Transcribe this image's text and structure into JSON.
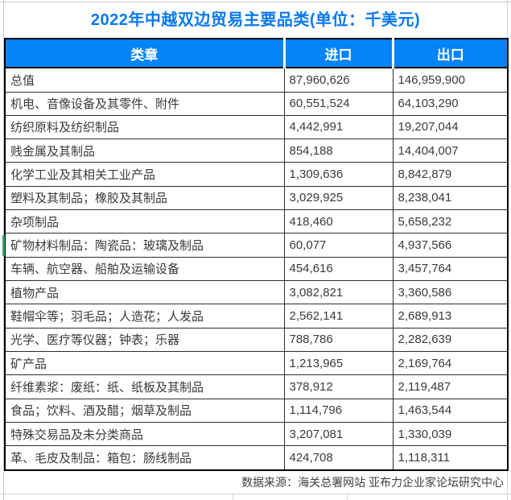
{
  "title": "2022年中越双边贸易主要品类(单位：千美元)",
  "table": {
    "headers": [
      "类章",
      "进口",
      "出口"
    ],
    "rows": [
      [
        "总值",
        "87,960,626",
        "146,959,900"
      ],
      [
        "机电、音像设备及其零件、附件",
        "60,551,524",
        "64,103,290"
      ],
      [
        "纺织原料及纺织制品",
        "4,442,991",
        "19,207,044"
      ],
      [
        "贱金属及其制品",
        "854,188",
        "14,404,007"
      ],
      [
        "化学工业及其相关工业产品",
        "1,309,636",
        "8,842,879"
      ],
      [
        "塑料及其制品；橡胶及其制品",
        "3,029,925",
        "8,238,041"
      ],
      [
        "杂项制品",
        "418,460",
        "5,658,232"
      ],
      [
        "矿物材料制品：陶瓷品：玻璃及制品",
        "60,077",
        "4,937,566"
      ],
      [
        "车辆、航空器、船舶及运输设备",
        "454,616",
        "3,457,764"
      ],
      [
        "植物产品",
        "3,082,821",
        "3,360,586"
      ],
      [
        "鞋帽伞等；羽毛品；人造花；人发品",
        "2,562,141",
        "2,689,913"
      ],
      [
        "光学、医疗等仪器；钟表；乐器",
        "788,786",
        "2,282,639"
      ],
      [
        "矿产品",
        "1,213,965",
        "2,169,764"
      ],
      [
        "纤维素浆：废纸：纸、纸板及其制品",
        "378,912",
        "2,119,487"
      ],
      [
        "食品；饮料、酒及醋；烟草及制品",
        "1,114,796",
        "1,463,544"
      ],
      [
        "特殊交易品及未分类商品",
        "3,207,081",
        "1,330,039"
      ],
      [
        "革、毛皮及制品：箱包：肠线制品",
        "424,708",
        "1,118,311"
      ]
    ]
  },
  "footer": {
    "source": "数据来源：海关总署网站 亚布力企业家论坛研究中心"
  },
  "colors": {
    "title_text": "#0b78f0",
    "header_bg": "#0584f8",
    "header_text": "#ffffff",
    "body_text": "#3a3a3a",
    "green_marker": "#35a869"
  },
  "chart_data": {
    "type": "table",
    "title": "2022年中越双边贸易主要品类(单位：千美元)",
    "columns": [
      "类章",
      "进口",
      "出口"
    ],
    "categories": [
      "总值",
      "机电、音像设备及其零件、附件",
      "纺织原料及纺织制品",
      "贱金属及其制品",
      "化学工业及其相关工业产品",
      "塑料及其制品；橡胶及其制品",
      "杂项制品",
      "矿物材料制品：陶瓷品：玻璃及制品",
      "车辆、航空器、船舶及运输设备",
      "植物产品",
      "鞋帽伞等；羽毛品；人造花；人发品",
      "光学、医疗等仪器；钟表；乐器",
      "矿产品",
      "纤维素浆：废纸：纸、纸板及其制品",
      "食品；饮料、酒及醋；烟草及制品",
      "特殊交易品及未分类商品",
      "革、毛皮及制品：箱包：肠线制品"
    ],
    "series": [
      {
        "name": "进口",
        "values": [
          87960626,
          60551524,
          4442991,
          854188,
          1309636,
          3029925,
          418460,
          60077,
          454616,
          3082821,
          2562141,
          788786,
          1213965,
          378912,
          1114796,
          3207081,
          424708
        ]
      },
      {
        "name": "出口",
        "values": [
          146959900,
          64103290,
          19207044,
          14404007,
          8842879,
          8238041,
          5658232,
          4937566,
          3457764,
          3360586,
          2689913,
          2282639,
          2169764,
          2119487,
          1463544,
          1330039,
          1118311
        ]
      }
    ],
    "source": "数据来源：海关总署网站 亚布力企业家论坛研究中心"
  }
}
